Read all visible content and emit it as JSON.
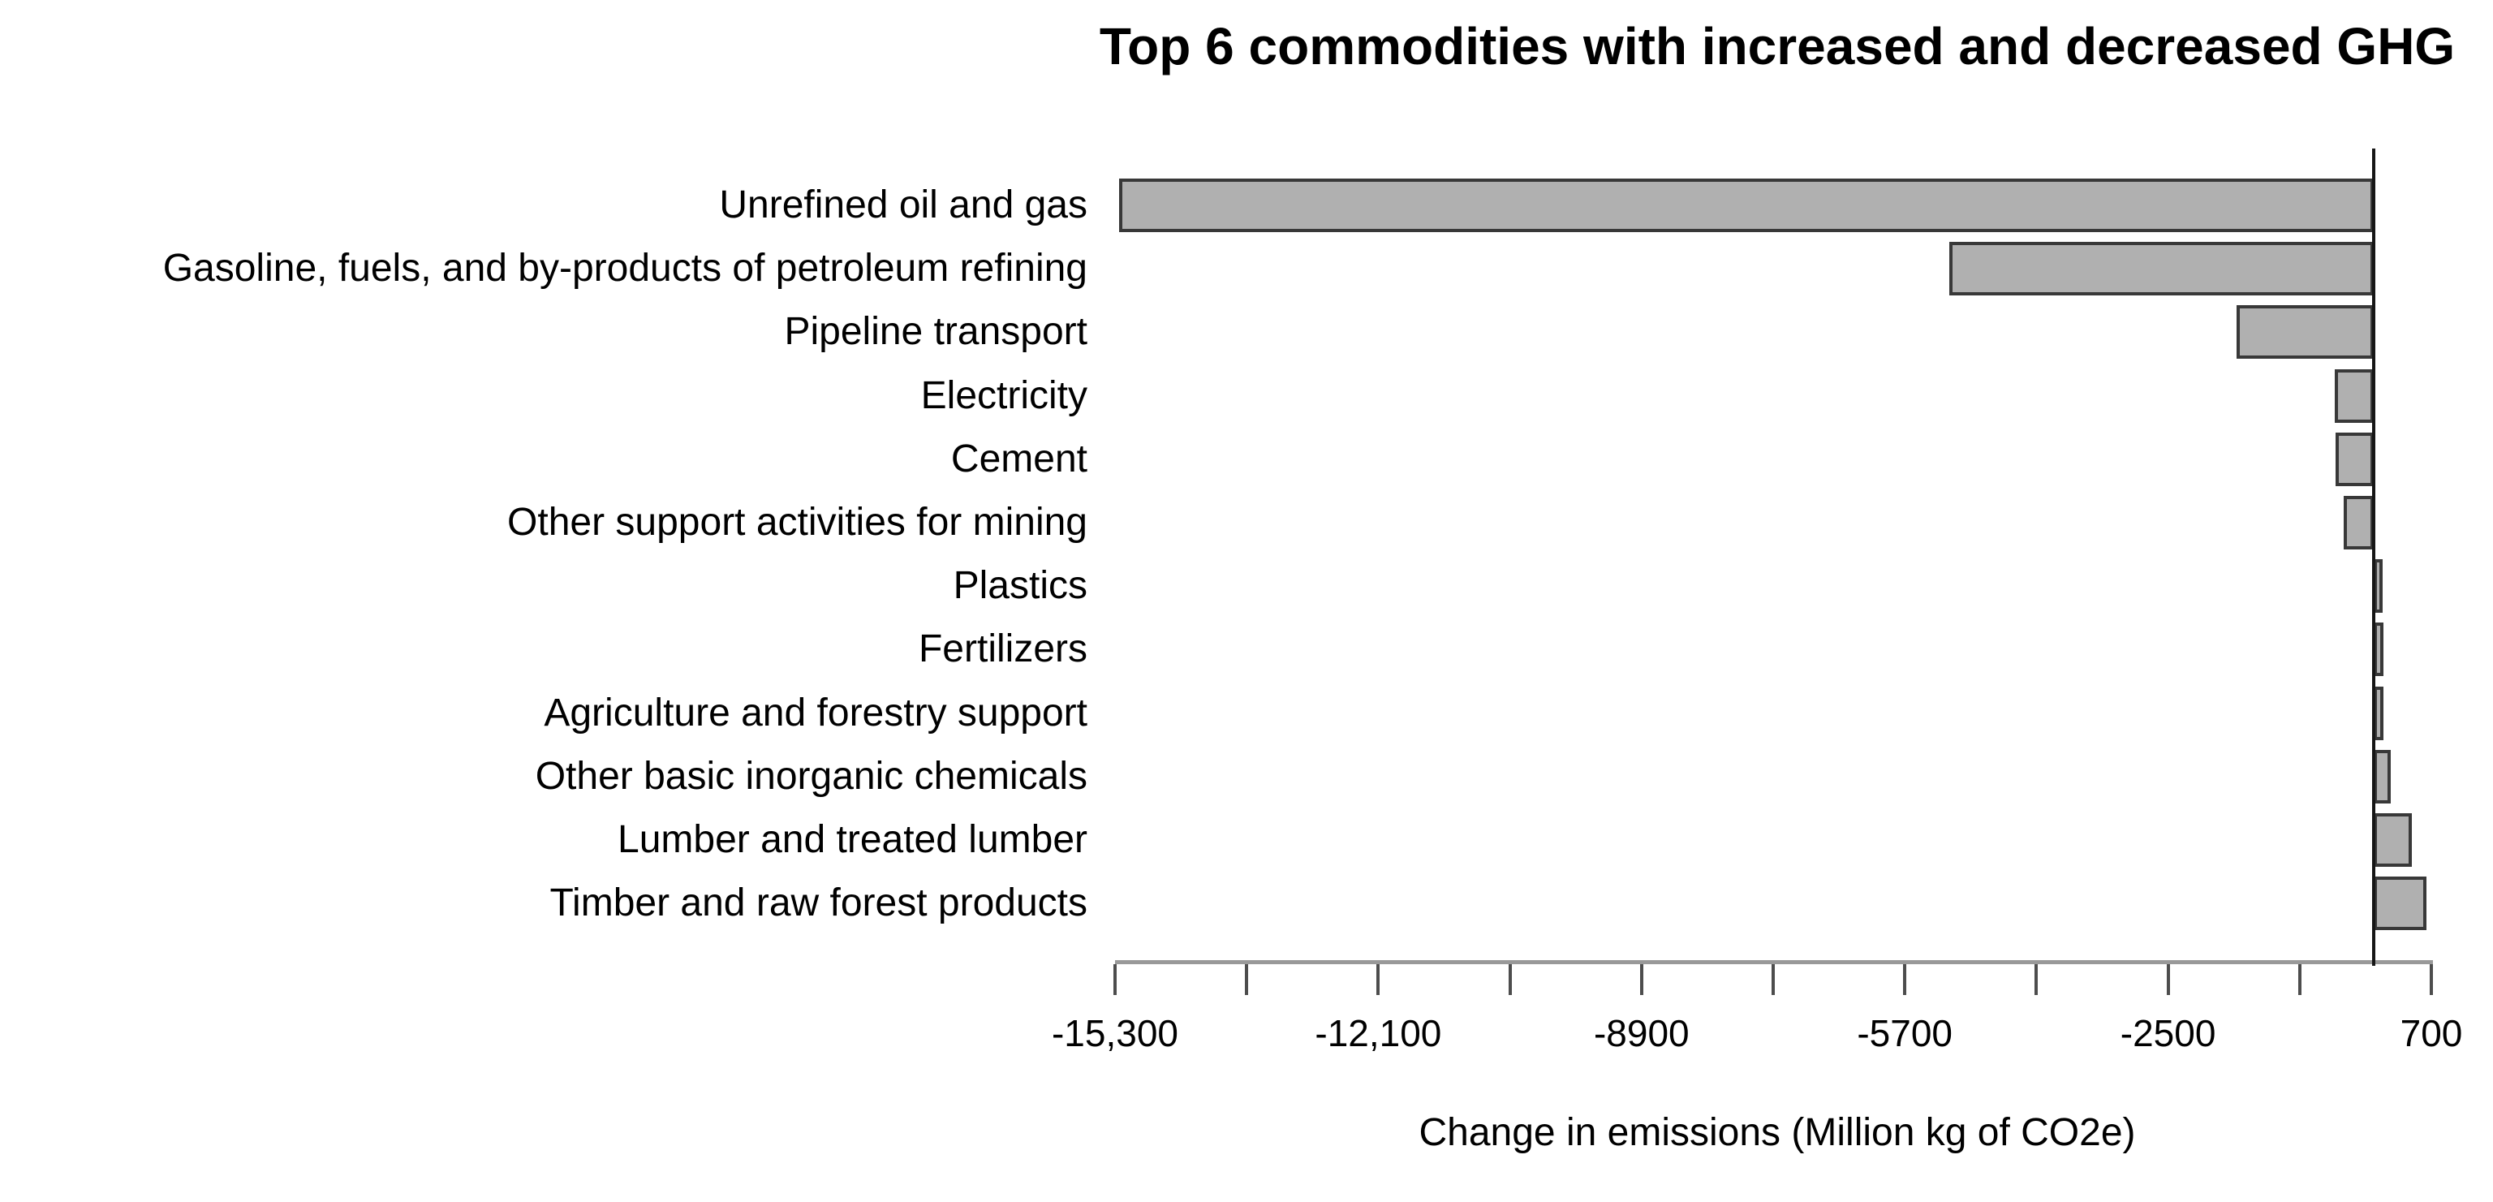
{
  "chart_data": {
    "type": "bar",
    "orientation": "horizontal",
    "title": "Top 6 commodities with increased and decreased GHG",
    "xlabel": "Change in emissions (Million kg of CO2e)",
    "categories": [
      "Unrefined oil and gas",
      "Gasoline, fuels, and by-products of petroleum refining",
      "Pipeline transport",
      "Electricity",
      "Cement",
      "Other support activities for mining",
      "Plastics",
      "Fertilizers",
      "Agriculture and forestry support",
      "Other basic inorganic chemicals",
      "Lumber and treated lumber",
      "Timber and raw forest products"
    ],
    "values": [
      -15250,
      -5160,
      -1670,
      -470,
      -460,
      -370,
      110,
      115,
      120,
      210,
      465,
      640
    ],
    "x_axis": {
      "range": [
        -15300,
        700
      ],
      "tick_values": [
        -15300,
        -13700,
        -12100,
        -10500,
        -8900,
        -7300,
        -5700,
        -4100,
        -2500,
        -900,
        700
      ],
      "tick_labels": [
        "-15,300",
        "",
        "-12,100",
        "",
        "-8900",
        "",
        "-5700",
        "",
        "-2500",
        "",
        "700"
      ]
    },
    "zero_baseline": 0,
    "grid": false,
    "legend": false,
    "styles": {
      "bar_fill": "#b0b0b0",
      "bar_border": "#383838",
      "axis_line": "#999999",
      "tick_mark": "#4d4d4d",
      "zero_line": "#161616",
      "text": "#000000",
      "background": "#ffffff"
    }
  }
}
